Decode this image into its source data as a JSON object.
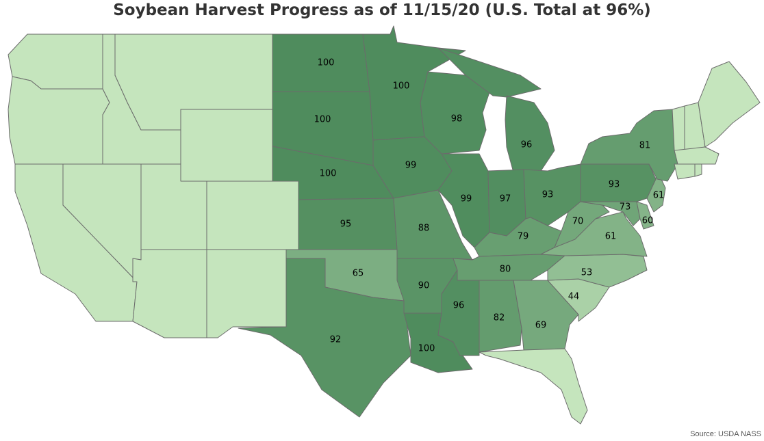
{
  "title": "Soybean Harvest Progress as of 11/15/20 (U.S. Total at 96%)",
  "source": "Source: USDA NASS",
  "colors": {
    "no_data": "#c5e5bd",
    "scale_low": "#c5e5bd",
    "scale_high": "#4f8c5d",
    "border": "#6b6b6b"
  },
  "states": [
    {
      "code": "WA",
      "value": null
    },
    {
      "code": "OR",
      "value": null
    },
    {
      "code": "CA",
      "value": null
    },
    {
      "code": "ID",
      "value": null
    },
    {
      "code": "NV",
      "value": null
    },
    {
      "code": "MT",
      "value": null
    },
    {
      "code": "WY",
      "value": null
    },
    {
      "code": "UT",
      "value": null
    },
    {
      "code": "AZ",
      "value": null
    },
    {
      "code": "CO",
      "value": null
    },
    {
      "code": "NM",
      "value": null
    },
    {
      "code": "ND",
      "value": "100"
    },
    {
      "code": "SD",
      "value": "100"
    },
    {
      "code": "NE",
      "value": "100"
    },
    {
      "code": "KS",
      "value": "95"
    },
    {
      "code": "OK",
      "value": "65"
    },
    {
      "code": "TX",
      "value": "92"
    },
    {
      "code": "MN",
      "value": "100"
    },
    {
      "code": "IA",
      "value": "99"
    },
    {
      "code": "MO",
      "value": "88"
    },
    {
      "code": "AR",
      "value": "90"
    },
    {
      "code": "LA",
      "value": "100"
    },
    {
      "code": "WI",
      "value": "98"
    },
    {
      "code": "IL",
      "value": "99"
    },
    {
      "code": "MS",
      "value": "96"
    },
    {
      "code": "MI",
      "value": "96"
    },
    {
      "code": "IN",
      "value": "97"
    },
    {
      "code": "OH",
      "value": "93"
    },
    {
      "code": "KY",
      "value": "79"
    },
    {
      "code": "TN",
      "value": "80"
    },
    {
      "code": "AL",
      "value": "82"
    },
    {
      "code": "GA",
      "value": "69"
    },
    {
      "code": "FL",
      "value": null
    },
    {
      "code": "SC",
      "value": "44"
    },
    {
      "code": "NC",
      "value": "53"
    },
    {
      "code": "VA",
      "value": "61"
    },
    {
      "code": "WV",
      "value": "70"
    },
    {
      "code": "MD",
      "value": "73"
    },
    {
      "code": "DE",
      "value": "60"
    },
    {
      "code": "NJ",
      "value": "61"
    },
    {
      "code": "PA",
      "value": "93"
    },
    {
      "code": "NY",
      "value": "81"
    },
    {
      "code": "VT",
      "value": null
    },
    {
      "code": "NH",
      "value": null
    },
    {
      "code": "ME",
      "value": null
    },
    {
      "code": "MA",
      "value": null
    },
    {
      "code": "CT",
      "value": null
    },
    {
      "code": "RI",
      "value": null
    }
  ]
}
